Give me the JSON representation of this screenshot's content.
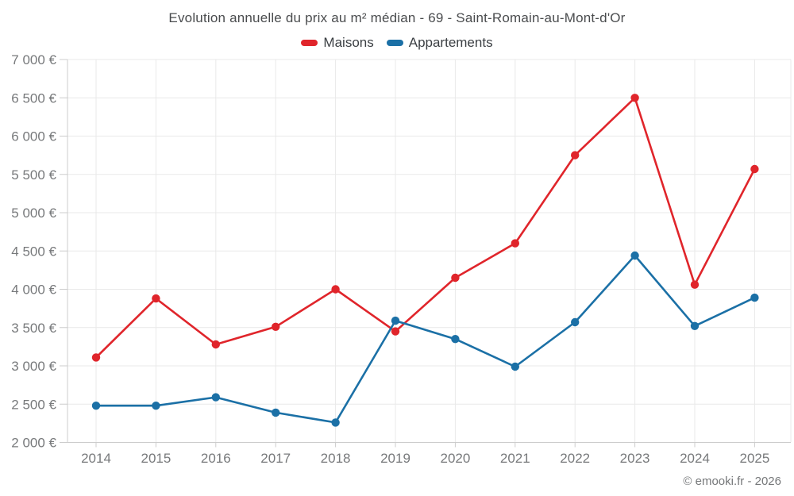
{
  "chart_data": {
    "type": "line",
    "title": "Evolution annuelle du prix au m² médian - 69 - Saint-Romain-au-Mont-d'Or",
    "categories": [
      "2014",
      "2015",
      "2016",
      "2017",
      "2018",
      "2019",
      "2020",
      "2021",
      "2022",
      "2023",
      "2024",
      "2025"
    ],
    "series": [
      {
        "name": "Maisons",
        "color": "#e0252b",
        "values": [
          3110,
          3880,
          3280,
          3510,
          4000,
          3450,
          4150,
          4600,
          5750,
          6500,
          4060,
          5570
        ]
      },
      {
        "name": "Appartements",
        "color": "#1b70a6",
        "values": [
          2480,
          2480,
          2590,
          2390,
          2260,
          3590,
          3350,
          2990,
          3570,
          4440,
          3520,
          3890
        ]
      }
    ],
    "ylim": [
      2000,
      7000
    ],
    "ytick_step": 500,
    "y_tick_labels": [
      "2 000 €",
      "2 500 €",
      "3 000 €",
      "3 500 €",
      "4 000 €",
      "4 500 €",
      "5 000 €",
      "5 500 €",
      "6 000 €",
      "6 500 €",
      "7 000 €"
    ],
    "xlabel": "",
    "ylabel": "",
    "grid": true,
    "legend_position": "top"
  },
  "footer": {
    "credit": "© emooki.fr - 2026"
  },
  "colors": {
    "background": "#ffffff",
    "gridline": "#e9e9e9",
    "axis_line": "#cccccc",
    "axis_text": "#77797b",
    "title_text": "#4a4c4e",
    "legend_text": "#3b3f43"
  }
}
